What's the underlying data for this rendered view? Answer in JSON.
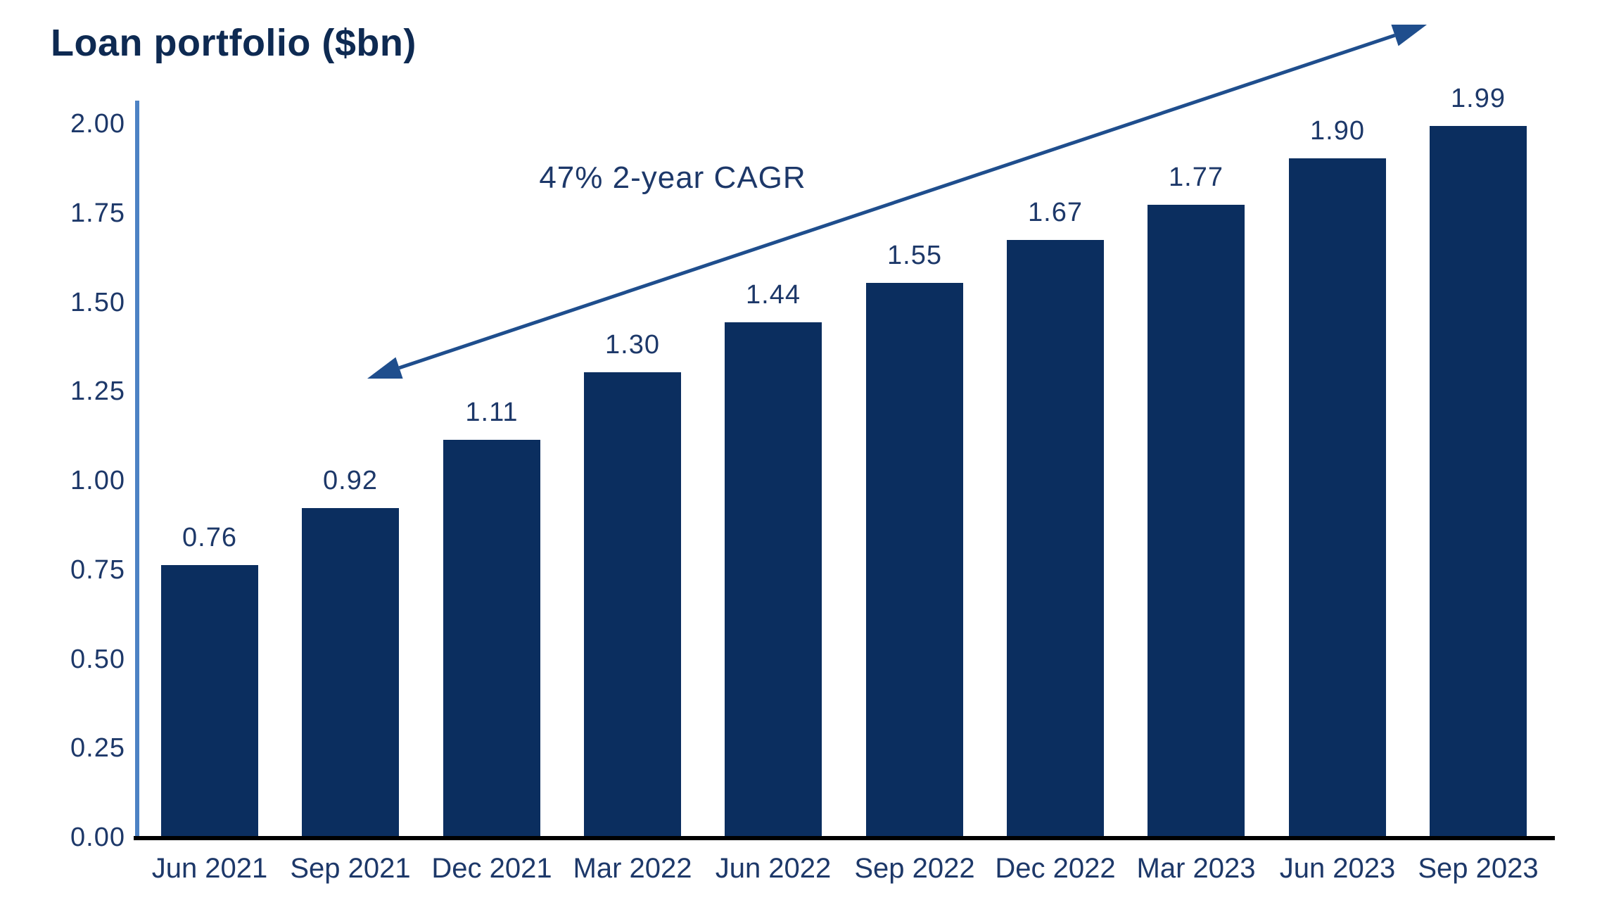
{
  "chart_data": {
    "type": "bar",
    "title": "Loan portfolio ($bn)",
    "categories": [
      "Jun 2021",
      "Sep 2021",
      "Dec 2021",
      "Mar 2022",
      "Jun 2022",
      "Sep 2022",
      "Dec 2022",
      "Mar 2023",
      "Jun 2023",
      "Sep 2023"
    ],
    "values": [
      0.76,
      0.92,
      1.11,
      1.3,
      1.44,
      1.55,
      1.67,
      1.77,
      1.9,
      1.99
    ],
    "value_labels": [
      "0.76",
      "0.92",
      "1.11",
      "1.30",
      "1.44",
      "1.55",
      "1.67",
      "1.77",
      "1.90",
      "1.99"
    ],
    "xlabel": "",
    "ylabel": "Loan portfolio ($bn)",
    "ylim": [
      0.0,
      2.0
    ],
    "y_tick_labels": [
      "0.00",
      "0.25",
      "0.50",
      "0.75",
      "1.00",
      "1.25",
      "1.50",
      "1.75",
      "2.00"
    ],
    "y_tick_values": [
      0.0,
      0.25,
      0.5,
      0.75,
      1.0,
      1.25,
      1.5,
      1.75,
      2.0
    ],
    "grid": false,
    "legend": "none",
    "annotation": "47% 2-year CAGR",
    "annotation_arrow": "double-headed, rising left-to-right"
  },
  "colors": {
    "bar": "#0b2e5f",
    "title_text": "#0e2a52",
    "tick_text": "#1d3869",
    "value_text": "#1d3869",
    "annotation_text": "#1d3869",
    "y_axis_line": "#4d82c4",
    "x_axis_line": "#000000",
    "arrow": "#1f4e8d",
    "background": "#ffffff"
  }
}
